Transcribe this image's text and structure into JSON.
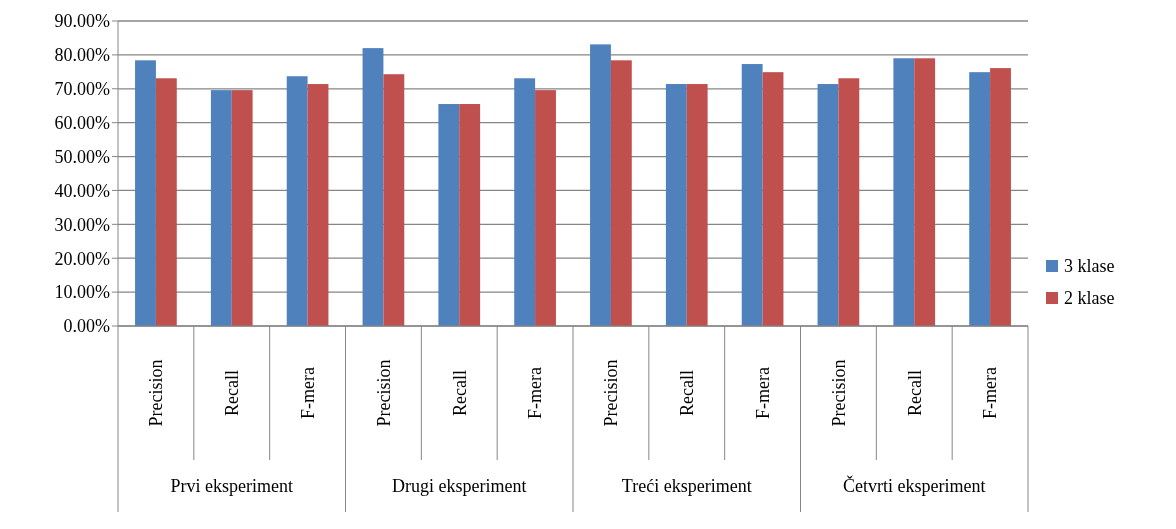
{
  "chart_data": {
    "type": "bar",
    "categories": [
      "Precision",
      "Recall",
      "F-mera",
      "Precision",
      "Recall",
      "F-mera",
      "Precision",
      "Recall",
      "F-mera",
      "Precision",
      "Recall",
      "F-mera"
    ],
    "annotations": [
      "Prvi eksperiment",
      "Drugi eksperiment",
      "Treći eksperiment",
      "Četvrti eksperiment"
    ],
    "series": [
      {
        "name": "3 klase",
        "color": "#4f81bd",
        "values": [
          78.4,
          69.6,
          73.7,
          82.0,
          65.5,
          73.1,
          83.1,
          71.4,
          77.3,
          71.4,
          79.0,
          74.9
        ]
      },
      {
        "name": "2 klase",
        "color": "#c0504d",
        "values": [
          73.1,
          69.6,
          71.4,
          74.3,
          65.5,
          69.6,
          78.4,
          71.4,
          74.9,
          73.1,
          79.0,
          76.1
        ]
      }
    ],
    "ylim": [
      0,
      90
    ],
    "yticks": [
      {
        "value": 0,
        "label": "0.00%"
      },
      {
        "value": 10,
        "label": "10.00%"
      },
      {
        "value": 20,
        "label": "20.00%"
      },
      {
        "value": 30,
        "label": "30.00%"
      },
      {
        "value": 40,
        "label": "40.00%"
      },
      {
        "value": 50,
        "label": "50.00%"
      },
      {
        "value": 60,
        "label": "60.00%"
      },
      {
        "value": 70,
        "label": "70.00%"
      },
      {
        "value": 80,
        "label": "80.00%"
      },
      {
        "value": 90,
        "label": "90.00%"
      }
    ],
    "grid": "y",
    "legend": "right"
  }
}
